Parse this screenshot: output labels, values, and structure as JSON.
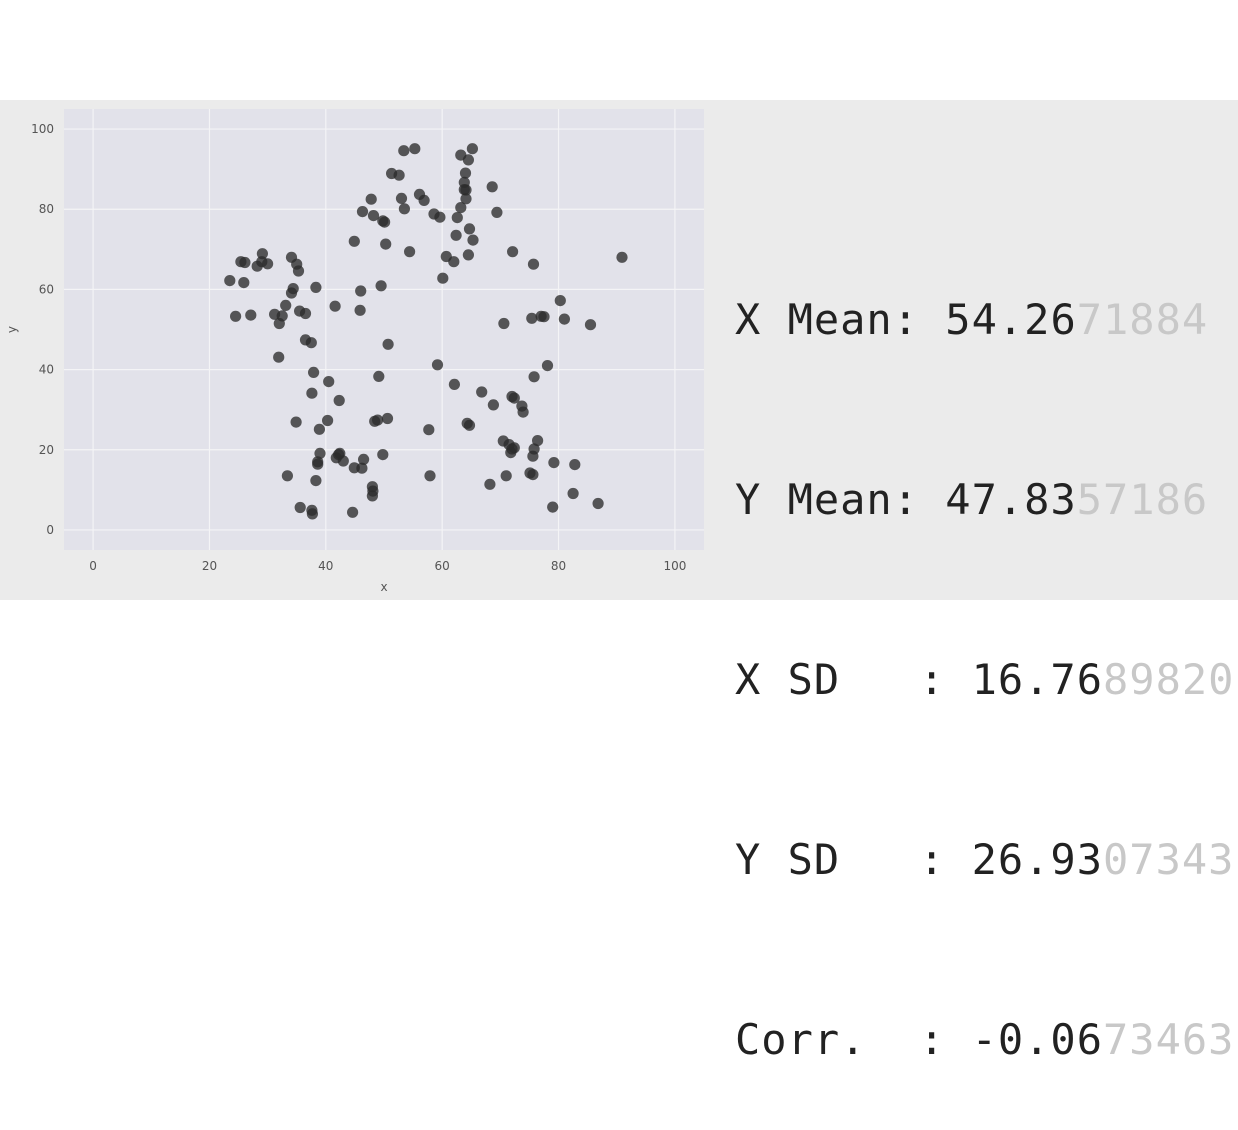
{
  "chart_data": {
    "type": "scatter",
    "title": "",
    "xlabel": "x",
    "ylabel": "y",
    "xlim": [
      -5,
      105
    ],
    "ylim": [
      -5,
      105
    ],
    "xticks": [
      0,
      20,
      40,
      60,
      80,
      100
    ],
    "yticks": [
      0,
      20,
      40,
      60,
      80,
      100
    ],
    "grid": true,
    "colors": {
      "point": "#2b2b2b",
      "plot_bg": "#e2e2ea",
      "grid": "#f4f4f6",
      "band_bg": "#ebebeb",
      "faded_text": "#c8c8c8"
    },
    "points": [
      [
        23.5,
        62.2
      ],
      [
        24.5,
        53.3
      ],
      [
        25.4,
        66.9
      ],
      [
        26.1,
        66.7
      ],
      [
        25.9,
        61.7
      ],
      [
        27.1,
        53.6
      ],
      [
        28.2,
        65.8
      ],
      [
        29.0,
        66.9
      ],
      [
        29.1,
        68.9
      ],
      [
        30.0,
        66.4
      ],
      [
        31.2,
        53.8
      ],
      [
        32.0,
        51.5
      ],
      [
        32.5,
        53.4
      ],
      [
        33.1,
        56.0
      ],
      [
        34.1,
        59.1
      ],
      [
        34.4,
        60.2
      ],
      [
        34.1,
        68.0
      ],
      [
        35.0,
        66.3
      ],
      [
        35.3,
        64.6
      ],
      [
        35.5,
        54.6
      ],
      [
        36.5,
        54.0
      ],
      [
        36.5,
        47.4
      ],
      [
        37.5,
        46.7
      ],
      [
        31.9,
        43.1
      ],
      [
        38.3,
        60.5
      ],
      [
        37.9,
        39.3
      ],
      [
        37.6,
        34.1
      ],
      [
        40.5,
        37.0
      ],
      [
        38.9,
        25.1
      ],
      [
        40.3,
        27.3
      ],
      [
        41.6,
        55.8
      ],
      [
        42.3,
        32.3
      ],
      [
        34.9,
        26.9
      ],
      [
        33.4,
        13.5
      ],
      [
        38.6,
        17.0
      ],
      [
        38.6,
        16.4
      ],
      [
        39.0,
        19.1
      ],
      [
        38.3,
        12.3
      ],
      [
        37.6,
        4.9
      ],
      [
        37.7,
        4.0
      ],
      [
        35.6,
        5.6
      ],
      [
        41.8,
        18.0
      ],
      [
        42.2,
        18.8
      ],
      [
        42.4,
        19.1
      ],
      [
        43.0,
        17.2
      ],
      [
        44.9,
        15.5
      ],
      [
        46.2,
        15.4
      ],
      [
        46.5,
        17.6
      ],
      [
        44.6,
        4.4
      ],
      [
        48.0,
        10.8
      ],
      [
        48.0,
        8.5
      ],
      [
        48.1,
        9.7
      ],
      [
        49.8,
        18.8
      ],
      [
        48.9,
        27.4
      ],
      [
        48.4,
        27.1
      ],
      [
        50.6,
        27.8
      ],
      [
        49.1,
        38.3
      ],
      [
        50.7,
        46.3
      ],
      [
        49.5,
        60.9
      ],
      [
        46.0,
        59.6
      ],
      [
        45.9,
        54.8
      ],
      [
        44.9,
        72.0
      ],
      [
        46.3,
        79.4
      ],
      [
        47.8,
        82.5
      ],
      [
        48.2,
        78.4
      ],
      [
        49.8,
        77.1
      ],
      [
        50.1,
        76.8
      ],
      [
        50.3,
        71.3
      ],
      [
        51.3,
        88.9
      ],
      [
        52.6,
        88.5
      ],
      [
        53.0,
        82.7
      ],
      [
        53.5,
        80.1
      ],
      [
        53.4,
        94.6
      ],
      [
        55.3,
        95.1
      ],
      [
        56.1,
        83.7
      ],
      [
        56.9,
        82.2
      ],
      [
        58.6,
        78.8
      ],
      [
        59.6,
        78.0
      ],
      [
        60.7,
        68.2
      ],
      [
        60.1,
        62.8
      ],
      [
        62.0,
        66.9
      ],
      [
        62.6,
        77.9
      ],
      [
        63.2,
        80.4
      ],
      [
        63.8,
        84.9
      ],
      [
        63.8,
        86.7
      ],
      [
        63.2,
        93.5
      ],
      [
        64.0,
        89.0
      ],
      [
        64.5,
        92.3
      ],
      [
        65.2,
        95.1
      ],
      [
        64.1,
        84.8
      ],
      [
        64.1,
        82.6
      ],
      [
        64.7,
        75.1
      ],
      [
        65.3,
        72.3
      ],
      [
        64.5,
        68.6
      ],
      [
        62.4,
        73.5
      ],
      [
        54.4,
        69.4
      ],
      [
        68.6,
        85.6
      ],
      [
        69.4,
        79.2
      ],
      [
        72.1,
        69.4
      ],
      [
        75.7,
        66.3
      ],
      [
        90.9,
        68.0
      ],
      [
        80.3,
        57.2
      ],
      [
        81.0,
        52.6
      ],
      [
        85.5,
        51.2
      ],
      [
        77.0,
        53.3
      ],
      [
        77.5,
        53.2
      ],
      [
        75.4,
        52.8
      ],
      [
        70.6,
        51.5
      ],
      [
        78.1,
        41.0
      ],
      [
        75.8,
        38.2
      ],
      [
        73.9,
        29.4
      ],
      [
        73.7,
        30.9
      ],
      [
        72.0,
        33.3
      ],
      [
        72.4,
        32.9
      ],
      [
        66.8,
        34.4
      ],
      [
        62.1,
        36.3
      ],
      [
        59.2,
        41.2
      ],
      [
        57.7,
        25.0
      ],
      [
        64.7,
        26.1
      ],
      [
        64.3,
        26.6
      ],
      [
        68.8,
        31.2
      ],
      [
        70.5,
        22.2
      ],
      [
        71.5,
        21.3
      ],
      [
        72.0,
        20.2
      ],
      [
        72.4,
        20.5
      ],
      [
        71.8,
        19.3
      ],
      [
        76.4,
        22.3
      ],
      [
        75.8,
        20.2
      ],
      [
        75.6,
        18.4
      ],
      [
        79.2,
        16.8
      ],
      [
        75.1,
        14.2
      ],
      [
        75.6,
        13.8
      ],
      [
        71.0,
        13.5
      ],
      [
        68.2,
        11.4
      ],
      [
        82.5,
        9.1
      ],
      [
        82.8,
        16.3
      ],
      [
        86.8,
        6.6
      ],
      [
        79.0,
        5.7
      ],
      [
        57.9,
        13.5
      ]
    ]
  },
  "stats": {
    "rows": [
      {
        "label": "X Mean: ",
        "value": "54.26",
        "faded": "71884"
      },
      {
        "label": "Y Mean: ",
        "value": "47.83",
        "faded": "57186"
      },
      {
        "label": "X SD   : ",
        "value": "16.76",
        "faded": "89820"
      },
      {
        "label": "Y SD   : ",
        "value": "26.93",
        "faded": "07343"
      },
      {
        "label": "Corr.  : ",
        "value": "-0.06",
        "faded": "73463"
      }
    ]
  }
}
